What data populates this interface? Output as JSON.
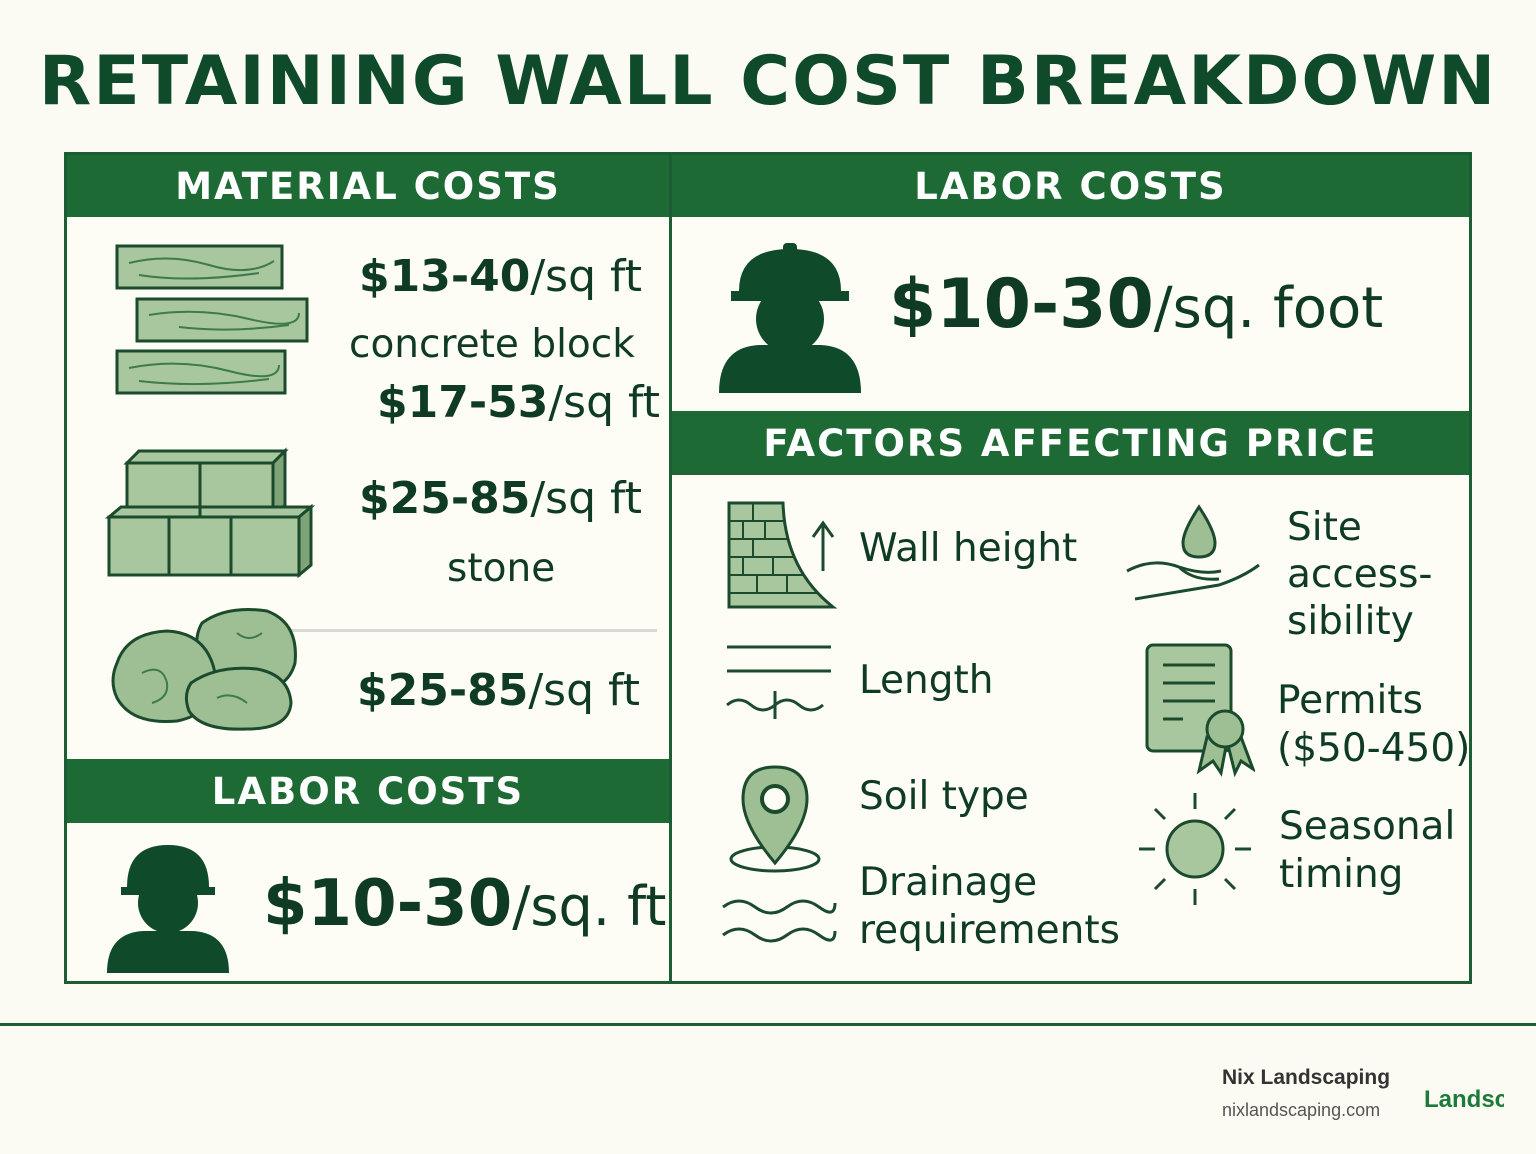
{
  "title": "RETAINING WALL COST BREAKDOWN",
  "material": {
    "header": "MATERIAL COSTS",
    "items": [
      {
        "price": "$13-40",
        "unit": "/sq ft",
        "desc": "concrete block"
      },
      {
        "price": "$17-53",
        "unit": "/sq ft"
      },
      {
        "price": "$25-85",
        "unit": "/sq ft",
        "desc": "stone"
      },
      {
        "price": "$25-85",
        "unit": "/sq ft"
      }
    ]
  },
  "labor_left": {
    "header": "LABOR COSTS",
    "price": "$10-30",
    "unit": "/sq. ft"
  },
  "labor_right": {
    "header": "LABOR COSTS",
    "price": "$10-30",
    "unit": "/sq. foot"
  },
  "factors": {
    "header": "FACTORS AFFECTING PRICE",
    "wall_height": "Wall height",
    "length": "Length",
    "soil_type": "Soil type",
    "drainage_1": "Drainage",
    "drainage_2": "requirements",
    "site_1": "Site",
    "site_2": "access-",
    "site_3": "sibility",
    "permits_1": "Permits",
    "permits_2": "($50-450)",
    "seasonal_1": "Seasonal",
    "seasonal_2": "timing"
  },
  "footer": {
    "brand": "Nix Landscaping",
    "url": "nixlandscaping.com",
    "logo_text": "Landsc"
  },
  "colors": {
    "dark_green": "#1d6a35",
    "light_green": "#9ebf94",
    "background": "#fbfbf4"
  }
}
